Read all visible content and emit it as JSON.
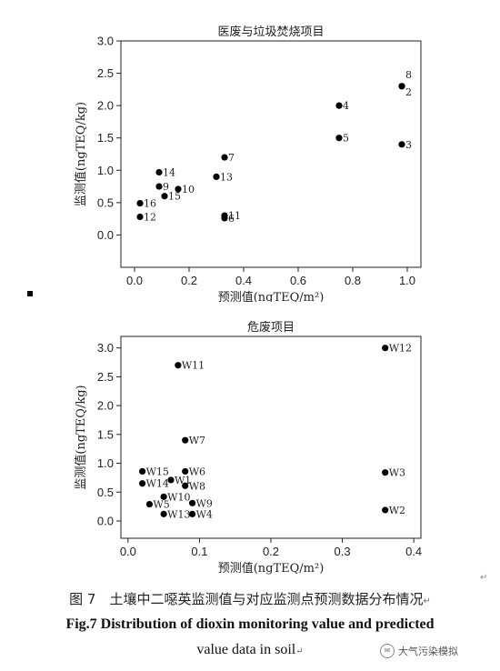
{
  "chart_data": [
    {
      "type": "scatter",
      "title": "医废与垃圾焚烧项目",
      "xlabel": "预测值(ngTEQ/m²)",
      "ylabel": "监测值(ngTEQ/kg)",
      "xlim": [
        -0.05,
        1.05
      ],
      "ylim": [
        -0.5,
        3.0
      ],
      "xticks": [
        0.0,
        0.2,
        0.4,
        0.6,
        0.8,
        1.0
      ],
      "xtick_labels": [
        "0.0",
        "0.2",
        "0.4",
        "0.6",
        "0.8",
        "1.0"
      ],
      "yticks": [
        0.0,
        0.5,
        1.0,
        1.5,
        2.0,
        2.5,
        3.0
      ],
      "ytick_labels": [
        "0.0",
        "0.5",
        "1.0",
        "1.5",
        "2.0",
        "2.5",
        "3.0"
      ],
      "grid": false,
      "points": [
        {
          "label": "8",
          "x": 0.98,
          "y": 2.3
        },
        {
          "label": "2",
          "x": 0.98,
          "y": 2.3
        },
        {
          "label": "4",
          "x": 0.75,
          "y": 2.0
        },
        {
          "label": "5",
          "x": 0.75,
          "y": 1.5
        },
        {
          "label": "3",
          "x": 0.98,
          "y": 1.4
        },
        {
          "label": "7",
          "x": 0.33,
          "y": 1.2
        },
        {
          "label": "14",
          "x": 0.09,
          "y": 0.97
        },
        {
          "label": "13",
          "x": 0.3,
          "y": 0.9
        },
        {
          "label": "9",
          "x": 0.09,
          "y": 0.75
        },
        {
          "label": "10",
          "x": 0.16,
          "y": 0.71
        },
        {
          "label": "15",
          "x": 0.11,
          "y": 0.6
        },
        {
          "label": "16",
          "x": 0.02,
          "y": 0.49
        },
        {
          "label": "11",
          "x": 0.33,
          "y": 0.3
        },
        {
          "label": "6",
          "x": 0.33,
          "y": 0.26
        },
        {
          "label": "12",
          "x": 0.02,
          "y": 0.28
        }
      ]
    },
    {
      "type": "scatter",
      "title": "危废项目",
      "xlabel": "预测值(ngTEQ/m²)",
      "ylabel": "监测值(ngTEQ/kg)",
      "xlim": [
        -0.01,
        0.41
      ],
      "ylim": [
        -0.3,
        3.2
      ],
      "xticks": [
        0.0,
        0.1,
        0.2,
        0.3,
        0.4
      ],
      "xtick_labels": [
        "0.0",
        "0.1",
        "0.2",
        "0.3",
        "0.4"
      ],
      "yticks": [
        0.0,
        0.5,
        1.0,
        1.5,
        2.0,
        2.5,
        3.0
      ],
      "ytick_labels": [
        "0.0",
        "0.5",
        "1.0",
        "1.5",
        "2.0",
        "2.5",
        "3.0"
      ],
      "grid": false,
      "points": [
        {
          "label": "W12",
          "x": 0.36,
          "y": 3.0
        },
        {
          "label": "W11",
          "x": 0.07,
          "y": 2.7
        },
        {
          "label": "W7",
          "x": 0.08,
          "y": 1.4
        },
        {
          "label": "W15",
          "x": 0.02,
          "y": 0.86
        },
        {
          "label": "W6",
          "x": 0.08,
          "y": 0.86
        },
        {
          "label": "W3",
          "x": 0.36,
          "y": 0.84
        },
        {
          "label": "W1",
          "x": 0.06,
          "y": 0.71
        },
        {
          "label": "W14",
          "x": 0.02,
          "y": 0.65
        },
        {
          "label": "W8",
          "x": 0.08,
          "y": 0.61
        },
        {
          "label": "W10",
          "x": 0.05,
          "y": 0.42
        },
        {
          "label": "W5",
          "x": 0.03,
          "y": 0.29
        },
        {
          "label": "W9",
          "x": 0.09,
          "y": 0.31
        },
        {
          "label": "W2",
          "x": 0.36,
          "y": 0.19
        },
        {
          "label": "W13",
          "x": 0.05,
          "y": 0.12
        },
        {
          "label": "W4",
          "x": 0.09,
          "y": 0.12
        }
      ]
    }
  ],
  "caption": {
    "cn": "图 7　土壤中二噁英监测值与对应监测点预测数据分布情况",
    "en_line1": "Fig.7   Distribution of dioxin monitoring value and predicted",
    "en_line2": "value data in soil",
    "return_mark": "↵"
  },
  "watermark": {
    "text": "大气污染模拟",
    "icon": "wechat-icon"
  }
}
